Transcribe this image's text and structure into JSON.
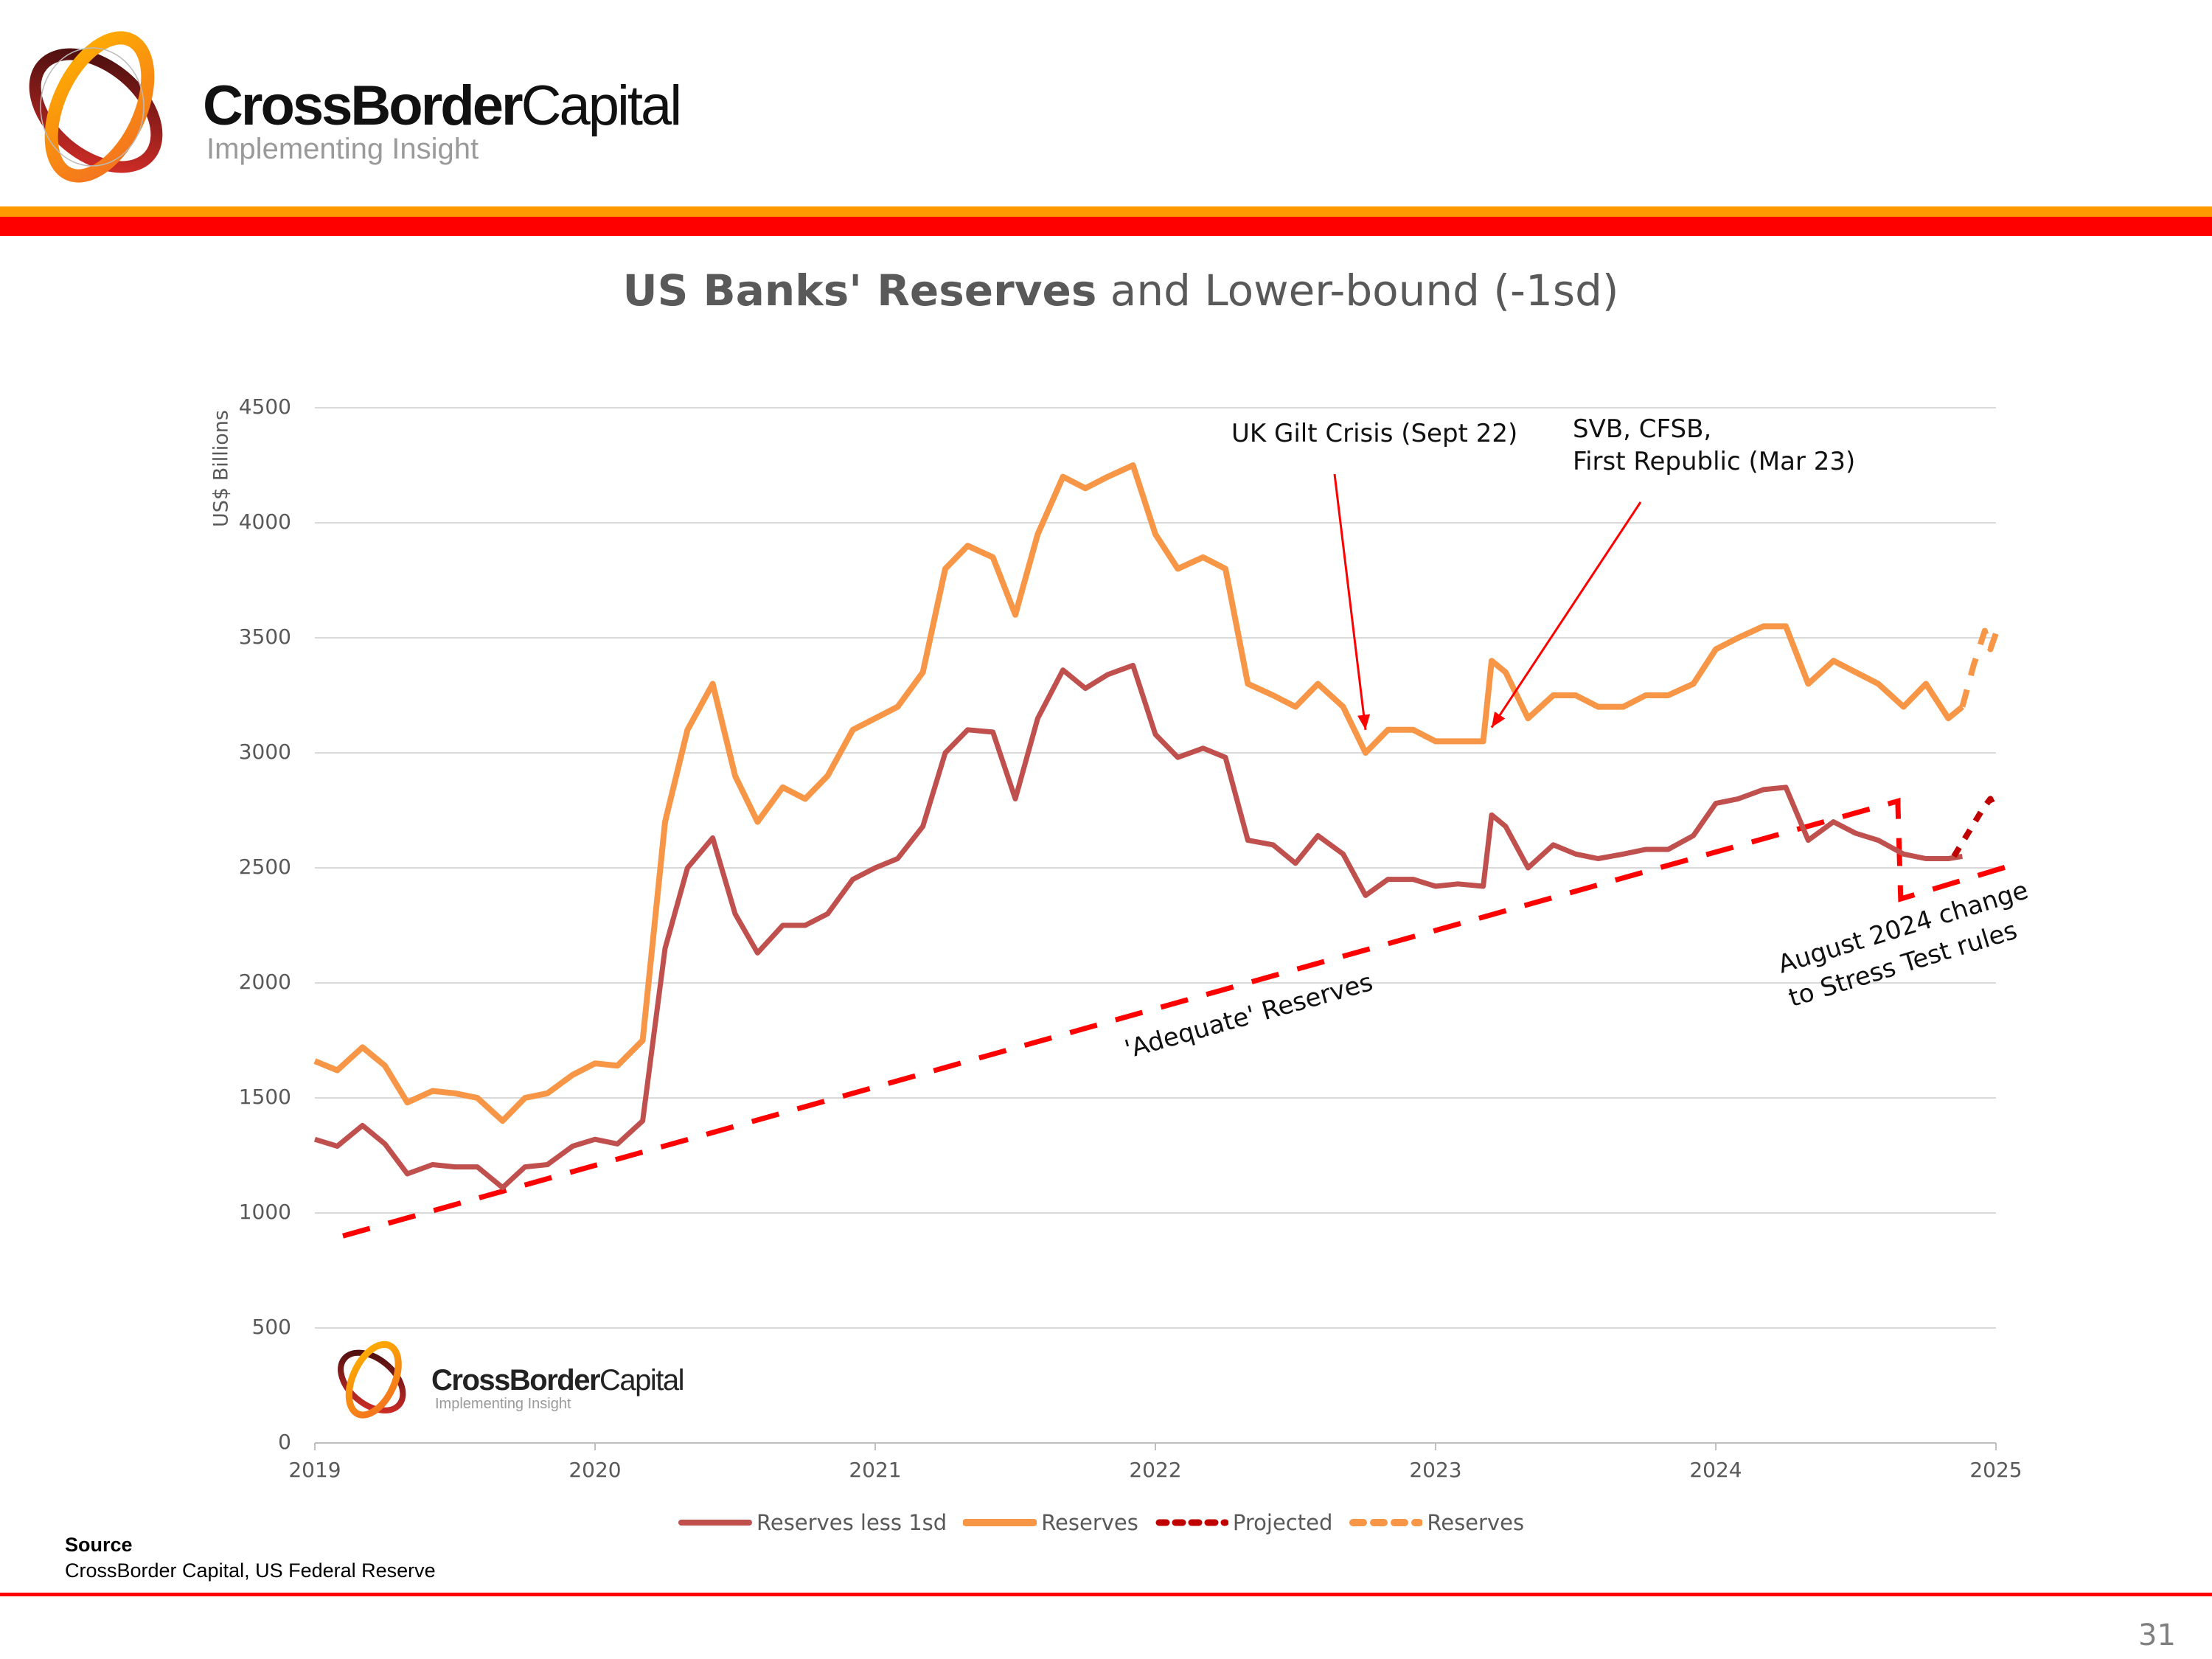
{
  "header": {
    "brand_bold": "CrossBorder",
    "brand_light": "Capital",
    "tagline": "Implementing Insight",
    "colors": {
      "orange_bar": "#ff9900",
      "red_bar": "#ff0000"
    }
  },
  "chart_data": {
    "type": "line",
    "title_bold": "US Banks' Reserves",
    "title_rest": "and Lower-bound (-1sd)",
    "ylabel": "US$ Billions",
    "xlabel": "",
    "xlim": [
      2019,
      2025
    ],
    "ylim": [
      0,
      4500
    ],
    "x_ticks": [
      "2019",
      "2020",
      "2021",
      "2022",
      "2023",
      "2024",
      "2025"
    ],
    "y_ticks": [
      "0",
      "500",
      "1000",
      "1500",
      "2000",
      "2500",
      "3000",
      "3500",
      "4000",
      "4500"
    ],
    "grid": true,
    "legend_position": "bottom",
    "series": [
      {
        "name": "Reserves less 1sd",
        "color": "#c0504d",
        "style": "solid",
        "x": [
          2019.0,
          2019.08,
          2019.17,
          2019.25,
          2019.33,
          2019.42,
          2019.5,
          2019.58,
          2019.67,
          2019.75,
          2019.83,
          2019.92,
          2020.0,
          2020.08,
          2020.17,
          2020.25,
          2020.33,
          2020.42,
          2020.5,
          2020.58,
          2020.67,
          2020.75,
          2020.83,
          2020.92,
          2021.0,
          2021.08,
          2021.17,
          2021.25,
          2021.33,
          2021.42,
          2021.5,
          2021.58,
          2021.67,
          2021.75,
          2021.83,
          2021.92,
          2022.0,
          2022.08,
          2022.17,
          2022.25,
          2022.33,
          2022.42,
          2022.5,
          2022.58,
          2022.67,
          2022.75,
          2022.83,
          2022.92,
          2023.0,
          2023.08,
          2023.17,
          2023.2,
          2023.25,
          2023.33,
          2023.42,
          2023.5,
          2023.58,
          2023.67,
          2023.75,
          2023.83,
          2023.92,
          2024.0,
          2024.08,
          2024.17,
          2024.25,
          2024.33,
          2024.42,
          2024.5,
          2024.58,
          2024.67,
          2024.75,
          2024.83,
          2024.88
        ],
        "y": [
          1320,
          1290,
          1380,
          1300,
          1170,
          1210,
          1200,
          1200,
          1110,
          1200,
          1210,
          1290,
          1320,
          1300,
          1400,
          2150,
          2500,
          2630,
          2300,
          2130,
          2250,
          2250,
          2300,
          2450,
          2500,
          2540,
          2680,
          3000,
          3100,
          3090,
          2800,
          3150,
          3360,
          3280,
          3340,
          3380,
          3080,
          2980,
          3020,
          2980,
          2620,
          2600,
          2520,
          2640,
          2560,
          2380,
          2450,
          2450,
          2420,
          2430,
          2420,
          2730,
          2680,
          2500,
          2600,
          2560,
          2540,
          2560,
          2580,
          2580,
          2640,
          2780,
          2800,
          2840,
          2850,
          2620,
          2700,
          2650,
          2620,
          2560,
          2540,
          2540,
          2550
        ]
      },
      {
        "name": "Reserves",
        "color": "#f79646",
        "style": "solid",
        "x": [
          2019.0,
          2019.08,
          2019.17,
          2019.25,
          2019.33,
          2019.42,
          2019.5,
          2019.58,
          2019.67,
          2019.75,
          2019.83,
          2019.92,
          2020.0,
          2020.08,
          2020.17,
          2020.25,
          2020.33,
          2020.42,
          2020.5,
          2020.58,
          2020.67,
          2020.75,
          2020.83,
          2020.92,
          2021.0,
          2021.08,
          2021.17,
          2021.25,
          2021.33,
          2021.42,
          2021.5,
          2021.58,
          2021.67,
          2021.75,
          2021.83,
          2021.92,
          2022.0,
          2022.08,
          2022.17,
          2022.25,
          2022.33,
          2022.42,
          2022.5,
          2022.58,
          2022.67,
          2022.75,
          2022.83,
          2022.92,
          2023.0,
          2023.08,
          2023.17,
          2023.2,
          2023.25,
          2023.33,
          2023.42,
          2023.5,
          2023.58,
          2023.67,
          2023.75,
          2023.83,
          2023.92,
          2024.0,
          2024.08,
          2024.17,
          2024.25,
          2024.33,
          2024.42,
          2024.5,
          2024.58,
          2024.67,
          2024.75,
          2024.83,
          2024.88
        ],
        "y": [
          1660,
          1620,
          1720,
          1640,
          1480,
          1530,
          1520,
          1500,
          1400,
          1500,
          1520,
          1600,
          1650,
          1640,
          1750,
          2700,
          3100,
          3300,
          2900,
          2700,
          2850,
          2800,
          2900,
          3100,
          3150,
          3200,
          3350,
          3800,
          3900,
          3850,
          3600,
          3950,
          4200,
          4150,
          4200,
          4250,
          3950,
          3800,
          3850,
          3800,
          3300,
          3250,
          3200,
          3300,
          3200,
          3000,
          3100,
          3100,
          3050,
          3050,
          3050,
          3400,
          3350,
          3150,
          3250,
          3250,
          3200,
          3200,
          3250,
          3250,
          3300,
          3450,
          3500,
          3550,
          3550,
          3300,
          3400,
          3350,
          3300,
          3200,
          3300,
          3150,
          3200
        ]
      },
      {
        "name": "Projected",
        "color": "#c00000",
        "style": "dotted",
        "x": [
          2024.85,
          2024.9,
          2024.95,
          2024.98,
          2025.0
        ],
        "y": [
          2550,
          2650,
          2750,
          2800,
          2750
        ]
      },
      {
        "name": "Reserves",
        "color": "#f79646",
        "style": "dashed",
        "x": [
          2024.88,
          2024.92,
          2024.96,
          2024.98,
          2025.0
        ],
        "y": [
          3200,
          3380,
          3530,
          3450,
          3520
        ]
      }
    ],
    "reference_line": {
      "label": "'Adequate' Reserves",
      "color": "#ff0000",
      "style": "dashed",
      "x": [
        2019.1,
        2024.65,
        2024.65,
        2024.66,
        2025.08
      ],
      "y": [
        900,
        2790,
        2770,
        2365,
        2520
      ]
    },
    "annotations": [
      {
        "id": "uk-gilt",
        "lines": [
          "UK Gilt Crisis (Sept 22)"
        ],
        "arrow_to": [
          2022.75,
          3100
        ]
      },
      {
        "id": "svb",
        "lines": [
          "SVB, CFSB,",
          "First Republic (Mar 23)"
        ],
        "arrow_to": [
          2023.2,
          3110
        ]
      },
      {
        "id": "stress-test",
        "lines": [
          "August 2024 change",
          "to Stress Test rules"
        ]
      }
    ]
  },
  "watermark": {
    "brand_bold": "CrossBorder",
    "brand_light": "Capital",
    "tagline": "Implementing Insight"
  },
  "footer": {
    "source_label": "Source",
    "source_text": "CrossBorder Capital, US Federal Reserve",
    "page_number": "31"
  }
}
